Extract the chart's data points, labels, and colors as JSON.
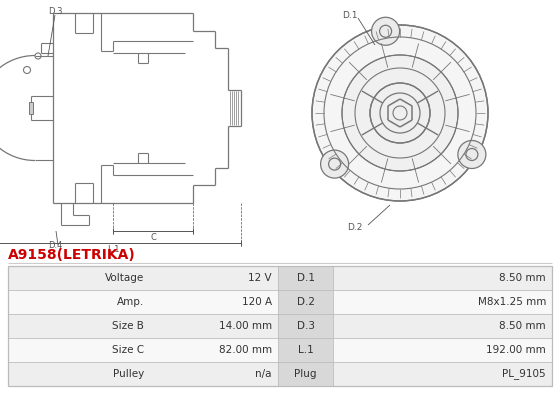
{
  "title": "A9158(LETRIKA)",
  "title_color": "#cc0000",
  "bg_color": "#ffffff",
  "line_color": "#777777",
  "dim_color": "#555555",
  "table_data": [
    [
      "Voltage",
      "12 V",
      "D.1",
      "8.50 mm"
    ],
    [
      "Amp.",
      "120 A",
      "D.2",
      "M8x1.25 mm"
    ],
    [
      "Size B",
      "14.00 mm",
      "D.3",
      "8.50 mm"
    ],
    [
      "Size C",
      "82.00 mm",
      "L.1",
      "192.00 mm"
    ],
    [
      "Pulley",
      "n/a",
      "Plug",
      "PL_9105"
    ]
  ],
  "table_bg_odd": "#eeeeee",
  "table_bg_even": "#f8f8f8",
  "mid_col_bg": "#d8d8d8",
  "border_color": "#bbbbbb",
  "text_color": "#333333"
}
